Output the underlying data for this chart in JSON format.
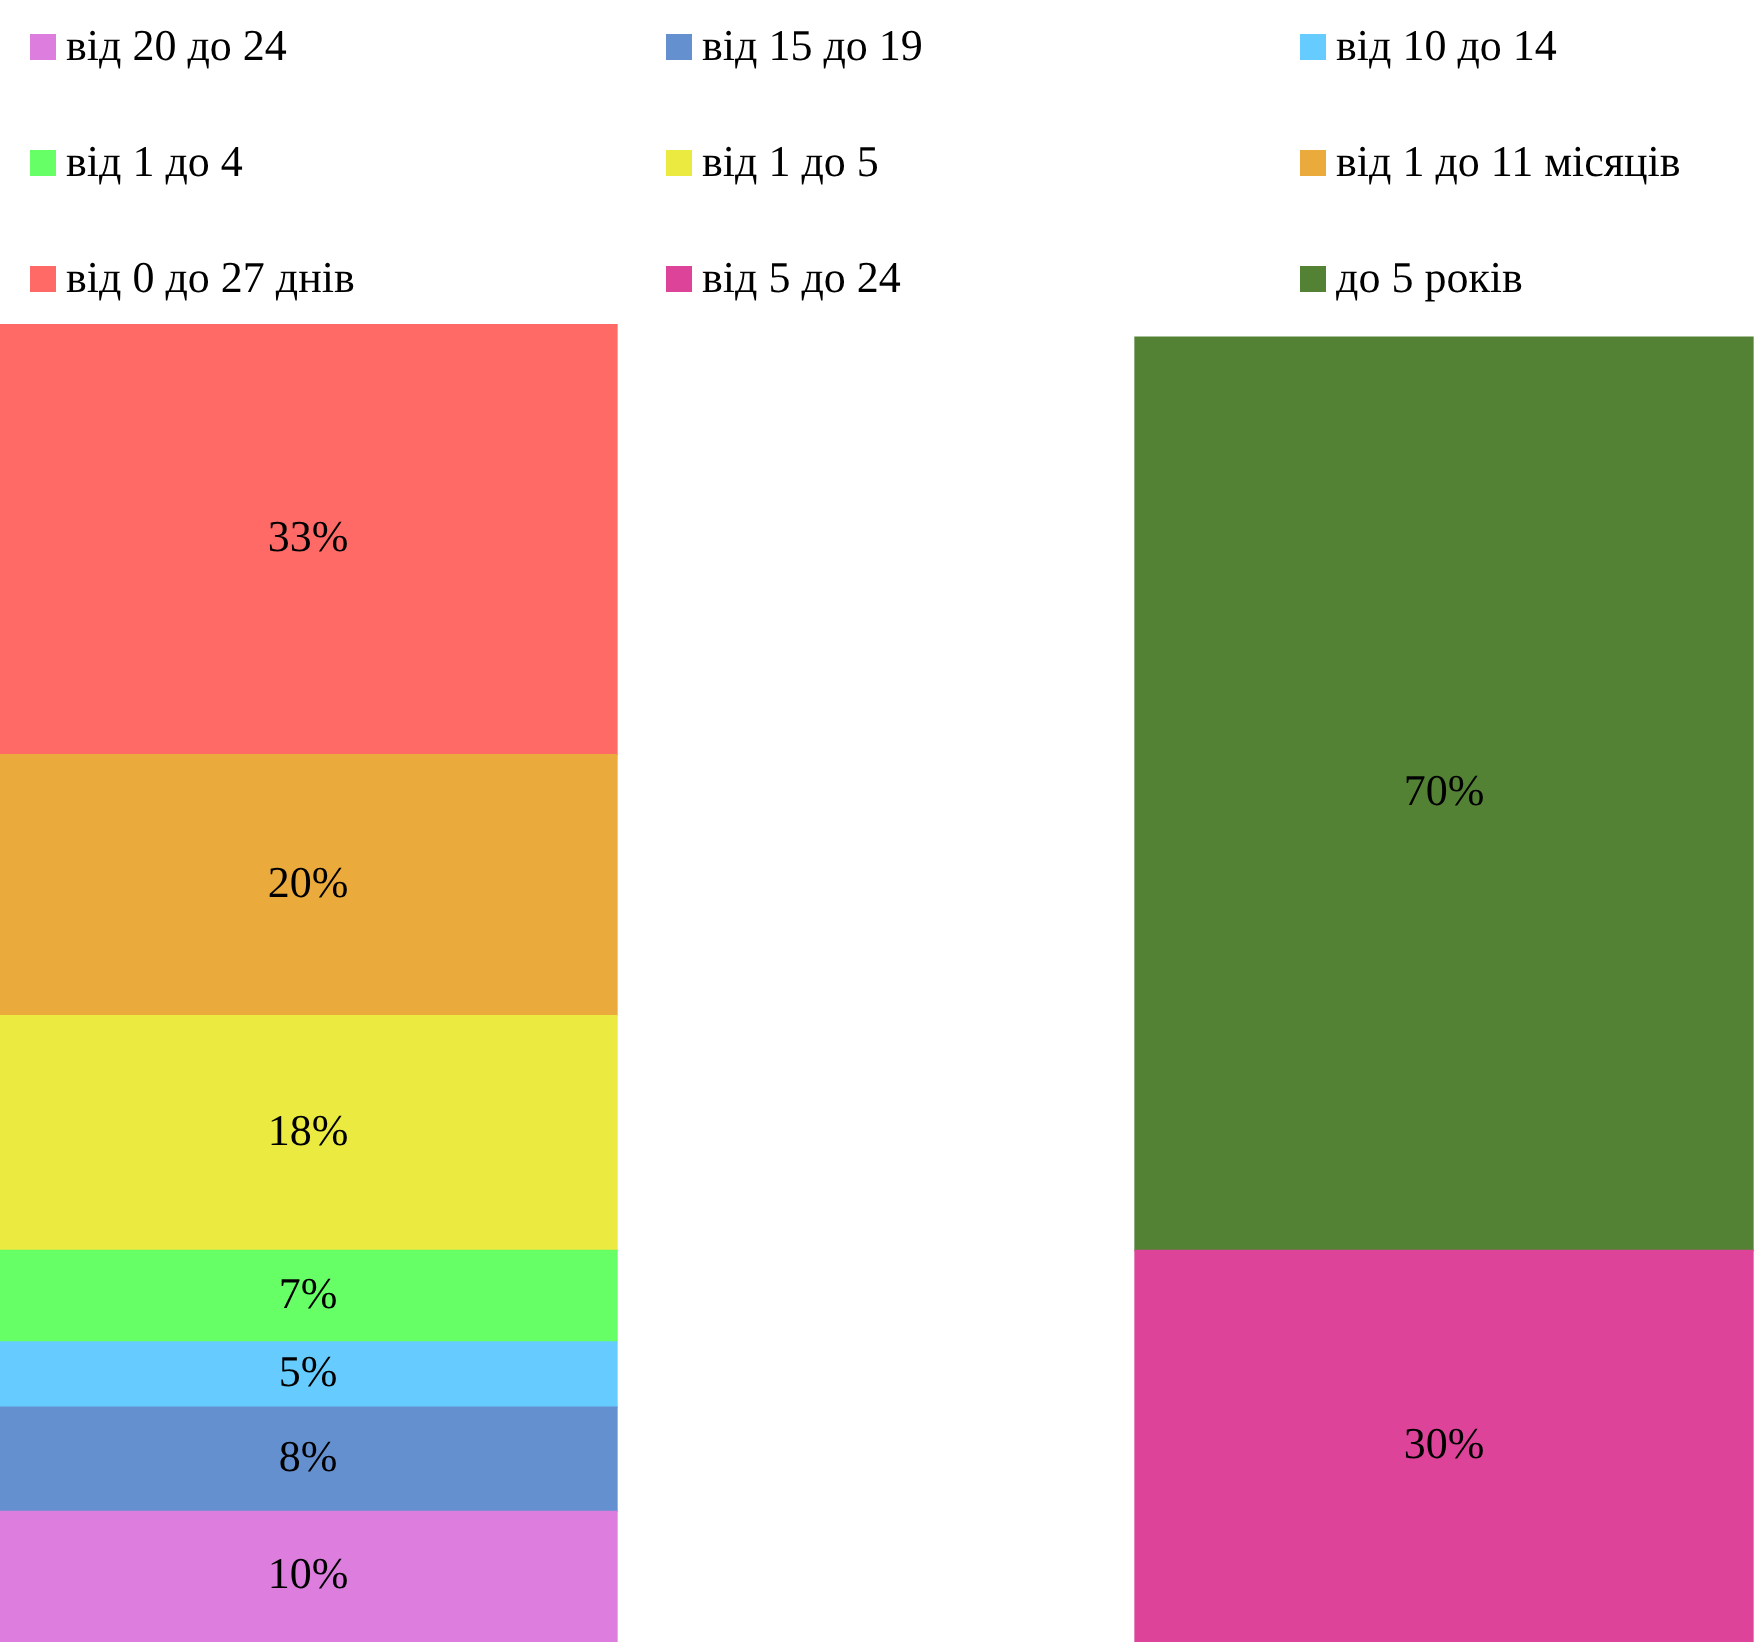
{
  "chart_data": {
    "type": "bar",
    "stacked": true,
    "legend": "top",
    "categories": [
      null,
      null
    ],
    "series": [
      {
        "name": "від 20 до 24",
        "color": "#dd7ddd",
        "values": [
          10,
          null
        ],
        "value_labels": [
          "10%",
          null
        ]
      },
      {
        "name": "від 15 до 19",
        "color": "#6490d0",
        "values": [
          8,
          null
        ],
        "value_labels": [
          "8%",
          null
        ]
      },
      {
        "name": "від 10 до 14",
        "color": "#66ccff",
        "values": [
          5,
          null
        ],
        "value_labels": [
          "5%",
          null
        ]
      },
      {
        "name": "від 1 до 4",
        "color": "#66ff66",
        "values": [
          7,
          null
        ],
        "value_labels": [
          "7%",
          null
        ]
      },
      {
        "name": "від 1 до 5",
        "color": "#eaea40",
        "values": [
          18,
          null
        ],
        "value_labels": [
          "18%",
          null
        ]
      },
      {
        "name": "від 1 до 11 місяців",
        "color": "#eaaa3c",
        "values": [
          20,
          null
        ],
        "value_labels": [
          "20%",
          null
        ]
      },
      {
        "name": "від 0 до 27 днів",
        "color": "#ff6a66",
        "values": [
          33,
          null
        ],
        "value_labels": [
          "33%",
          null
        ]
      },
      {
        "name": "від 5 до 24",
        "color": "#dd4499",
        "values": [
          null,
          30
        ],
        "value_labels": [
          null,
          "30%"
        ]
      },
      {
        "name": "до 5 років",
        "color": "#548235",
        "values": [
          null,
          70
        ],
        "value_labels": [
          null,
          "70%"
        ]
      }
    ]
  }
}
